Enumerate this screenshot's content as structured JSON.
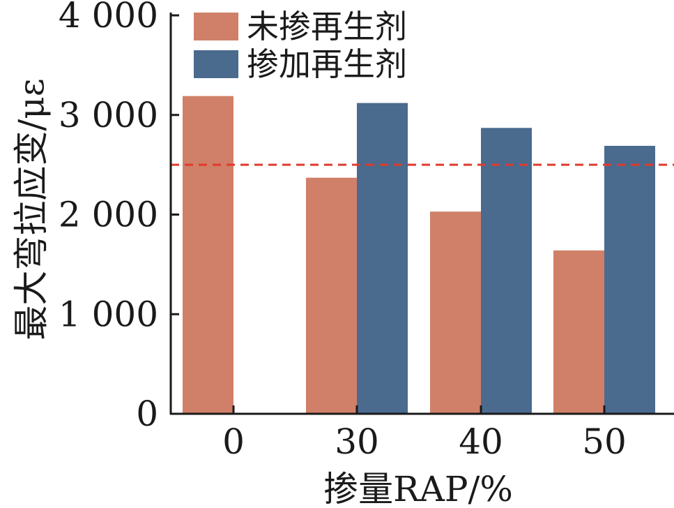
{
  "chart_data": {
    "type": "bar",
    "categories": [
      "0",
      "30",
      "40",
      "50"
    ],
    "series": [
      {
        "name": "未掺再生剂",
        "color": "#D08068",
        "values": [
          3190,
          2370,
          2030,
          1640
        ]
      },
      {
        "name": "掺加再生剂",
        "color": "#4A6A8E",
        "values": [
          null,
          3120,
          2870,
          2690
        ]
      }
    ],
    "xlabel": "掺量RAP/%",
    "ylabel": "最大弯拉应变/με",
    "ylim": [
      0,
      4000
    ],
    "yticks": [
      0,
      1000,
      2000,
      3000,
      4000
    ],
    "ytick_labels": [
      "0",
      "1 000",
      "2 000",
      "3 000",
      "4 000"
    ],
    "reference_line": {
      "value": 2500,
      "color": "#E03A2E",
      "style": "dashed"
    },
    "grid": false,
    "legend_position": "top-left"
  }
}
